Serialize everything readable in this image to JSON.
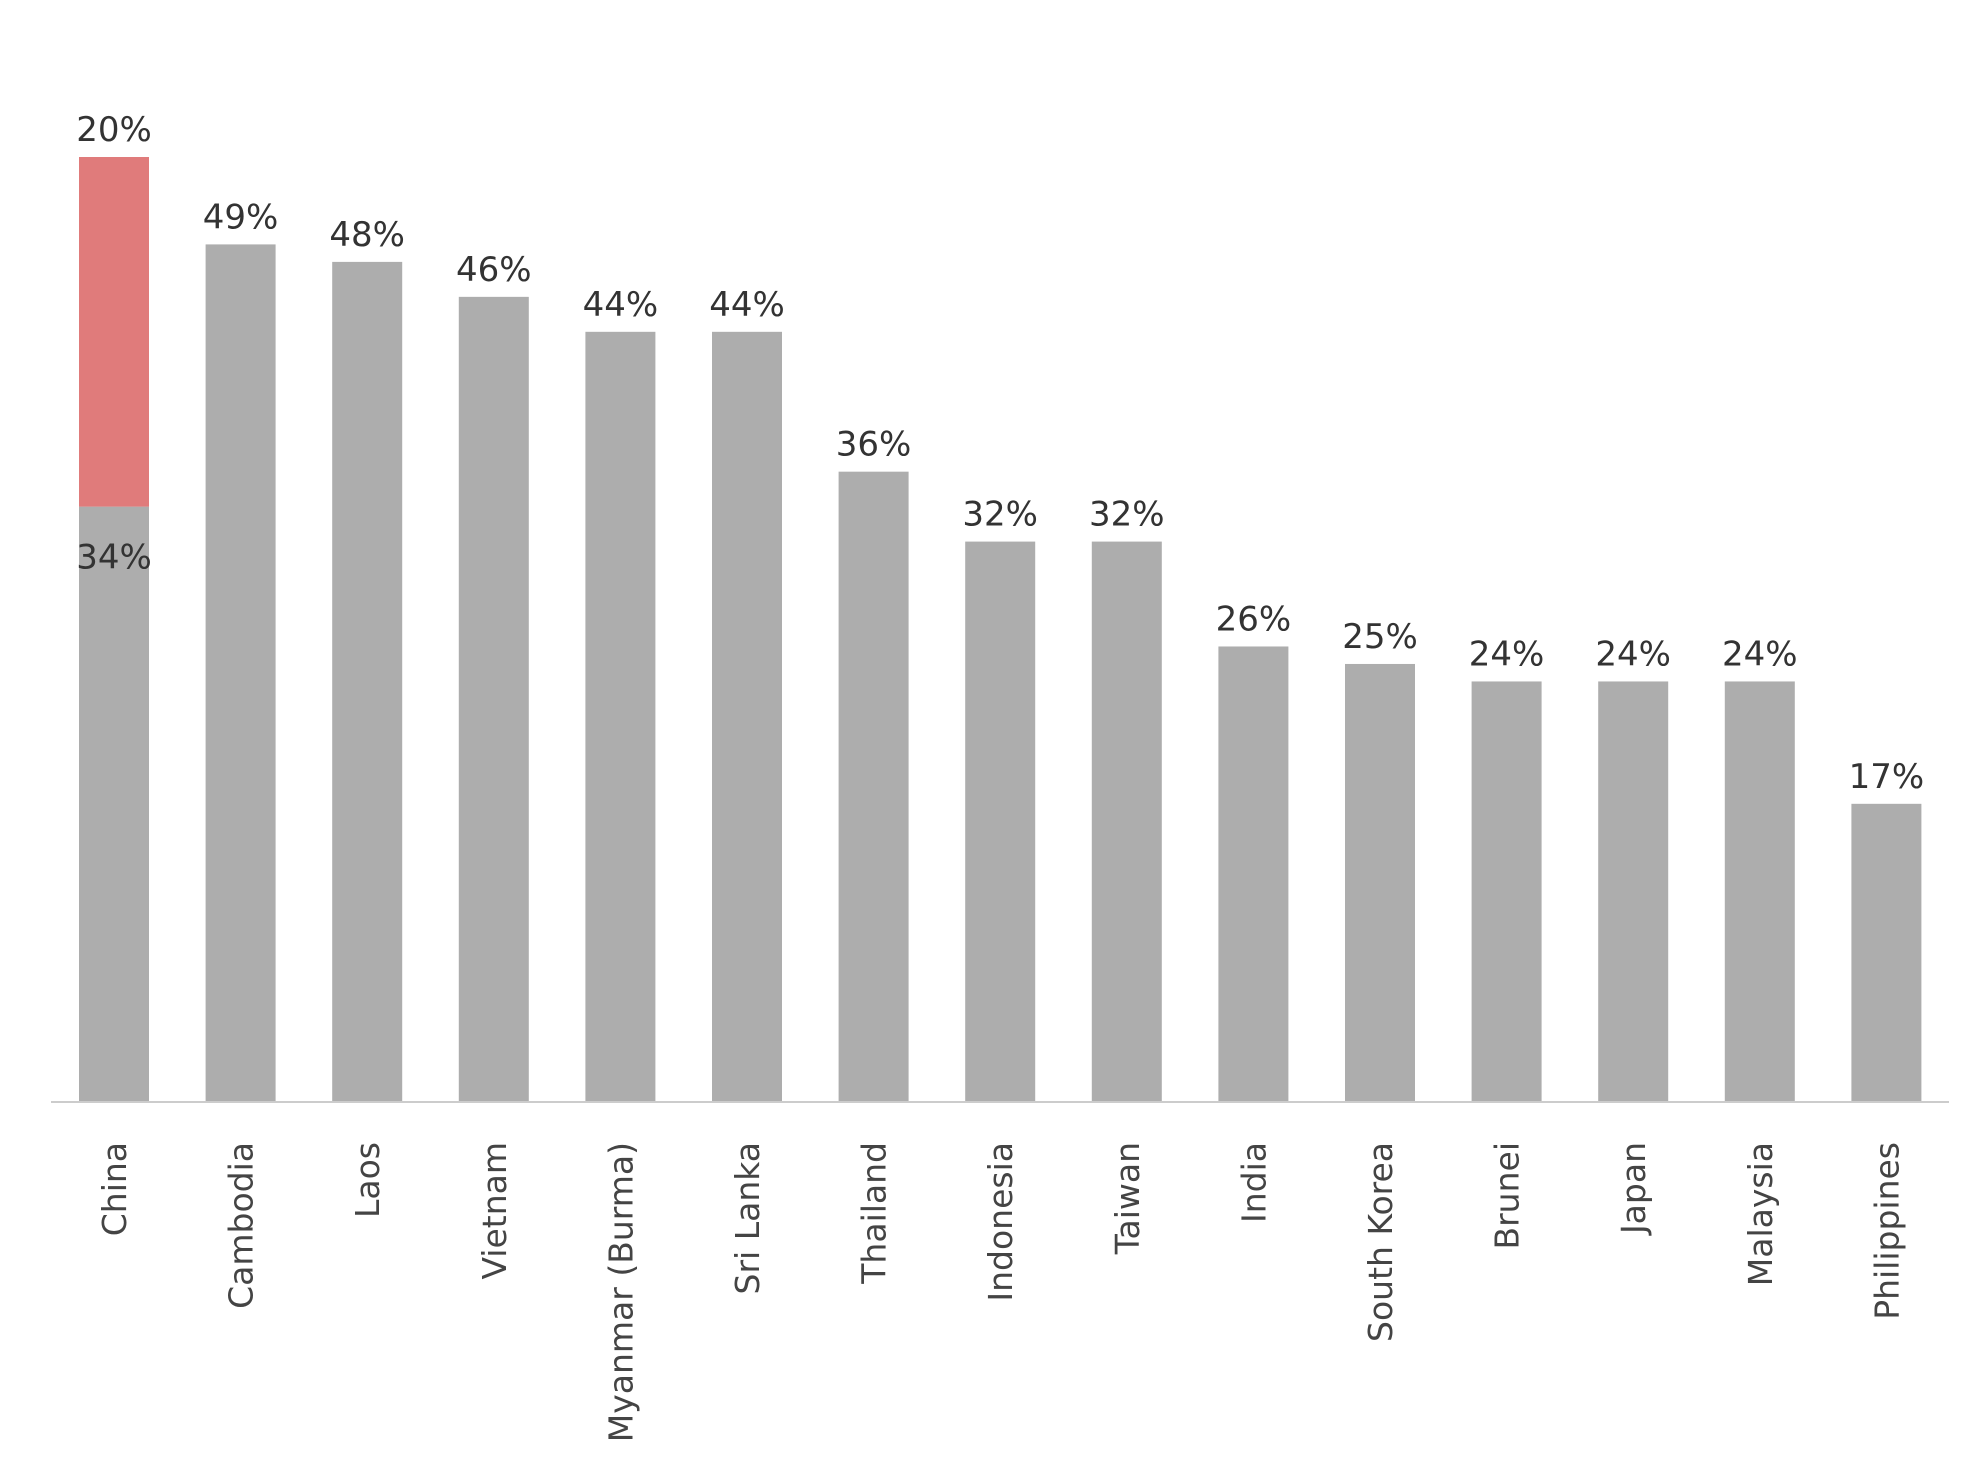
{
  "chart_data": {
    "type": "bar",
    "stacked": true,
    "categories": [
      "China",
      "Cambodia",
      "Laos",
      "Vietnam",
      "Myanmar (Burma)",
      "Sri Lanka",
      "Thailand",
      "Indonesia",
      "Taiwan",
      "India",
      "South Korea",
      "Brunei",
      "Japan",
      "Malaysia",
      "Philippines"
    ],
    "series": [
      {
        "color": "#adadad",
        "values": [
          34,
          49,
          48,
          46,
          44,
          44,
          36,
          32,
          32,
          26,
          25,
          24,
          24,
          24,
          17
        ],
        "value_labels": [
          "34%",
          "49%",
          "48%",
          "46%",
          "44%",
          "44%",
          "36%",
          "32%",
          "32%",
          "26%",
          "25%",
          "24%",
          "24%",
          "24%",
          "17%"
        ]
      },
      {
        "color": "#e07b7b",
        "values": [
          20,
          null,
          null,
          null,
          null,
          null,
          null,
          null,
          null,
          null,
          null,
          null,
          null,
          null,
          null
        ],
        "value_labels": [
          "20%",
          null,
          null,
          null,
          null,
          null,
          null,
          null,
          null,
          null,
          null,
          null,
          null,
          null,
          null
        ]
      }
    ]
  }
}
